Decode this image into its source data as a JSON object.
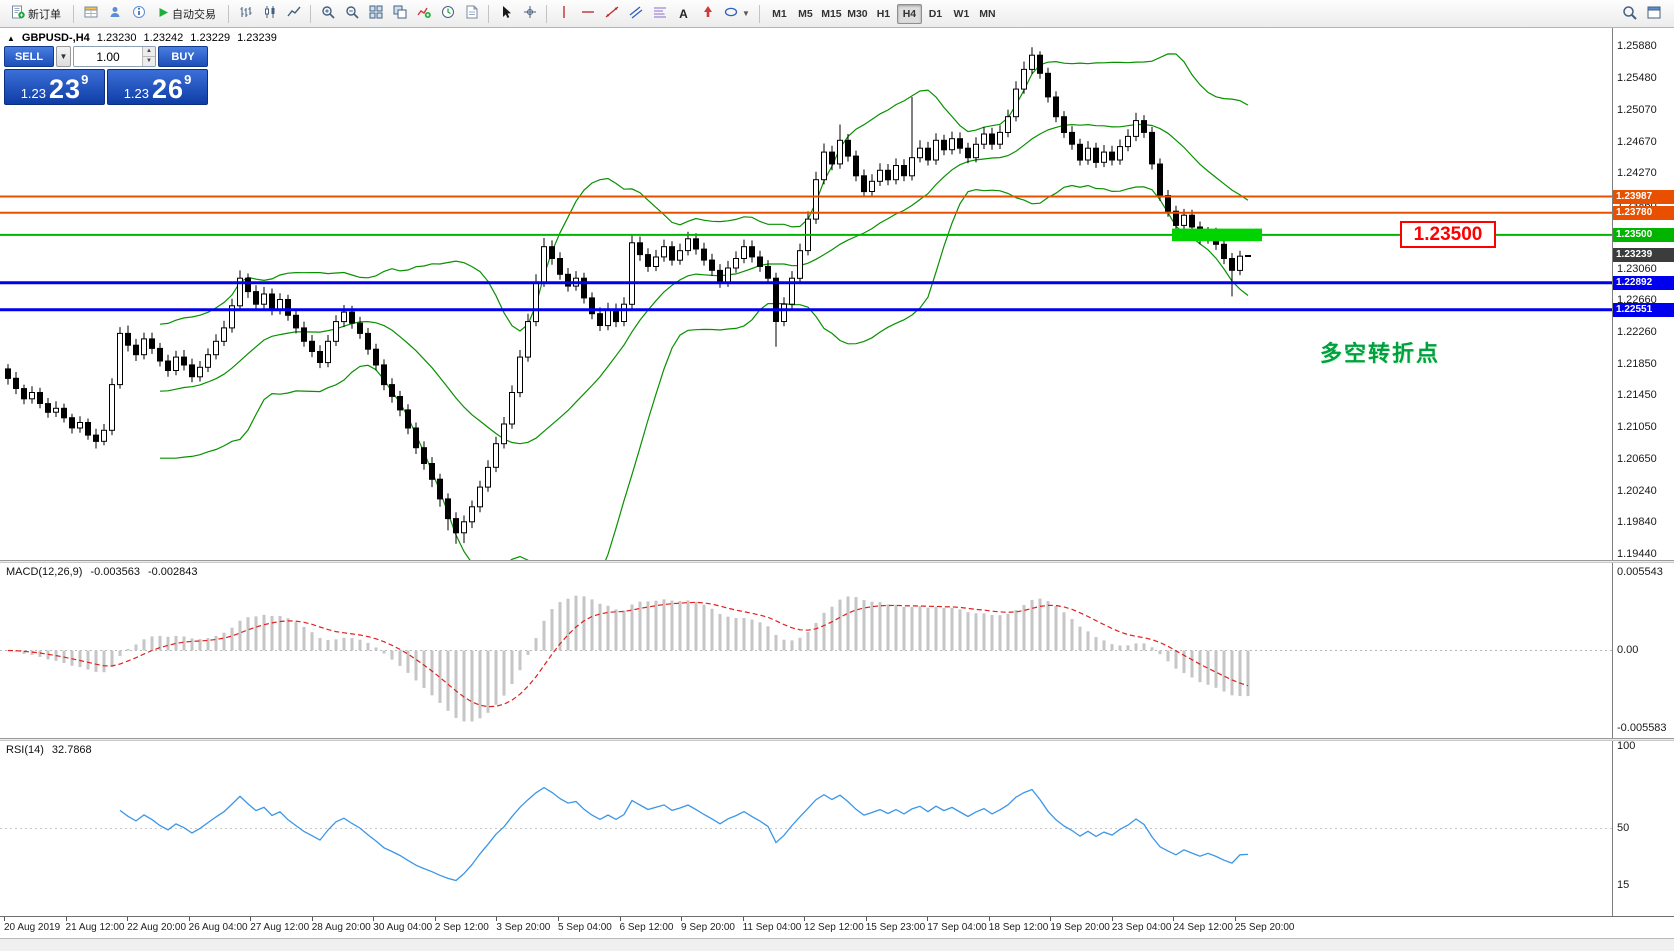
{
  "toolbar": {
    "new_order": "新订单",
    "autotrading": "自动交易",
    "text_tool": "A",
    "timeframes": [
      "M1",
      "M5",
      "M15",
      "M30",
      "H1",
      "H4",
      "D1",
      "W1",
      "MN"
    ],
    "active_timeframe": "H4"
  },
  "chart": {
    "marker": "▲",
    "symbol": "GBPUSD-,H4",
    "open": "1.23230",
    "high": "1.23242",
    "low": "1.23229",
    "close": "1.23239",
    "annotation": "多空转折点",
    "callout": "1.23500",
    "axis_labels": [
      "1.25880",
      "1.25480",
      "1.25070",
      "1.24670",
      "1.24270",
      "1.23860",
      "1.23460",
      "1.23060",
      "1.22660",
      "1.22260",
      "1.21850",
      "1.21450",
      "1.21050",
      "1.20650",
      "1.20240",
      "1.19840",
      "1.19440"
    ],
    "levels": [
      {
        "value": 1.23987,
        "label": "1.23987",
        "color": "#e85000",
        "width": 2
      },
      {
        "value": 1.2378,
        "label": "1.23780",
        "color": "#e85000",
        "width": 2
      },
      {
        "value": 1.235,
        "label": "1.23500",
        "color": "#00b400",
        "width": 2
      },
      {
        "value": 1.22892,
        "label": "1.22892",
        "color": "#0000ee",
        "width": 3
      },
      {
        "value": 1.22551,
        "label": "1.22551",
        "color": "#0000ee",
        "width": 3
      }
    ],
    "current": {
      "value": 1.23239,
      "label": "1.23239",
      "color": "#3c3c3c"
    },
    "highlight": {
      "price": 1.235,
      "half_range": 0.0008,
      "start_bar": 146,
      "end_bar": 156,
      "color": "#00d400"
    }
  },
  "trade_panel": {
    "sell": "SELL",
    "buy": "BUY",
    "volume": "1.00",
    "sell_small": "1.23",
    "sell_big": "23",
    "sell_sup": "9",
    "buy_small": "1.23",
    "buy_big": "26",
    "buy_sup": "9"
  },
  "macd": {
    "title": "MACD(12,26,9)",
    "v1": "-0.003563",
    "v2": "-0.002843",
    "axis_top": "0.005543",
    "axis_zero": "0.00",
    "axis_bottom": "-0.005583",
    "fast": 12,
    "slow": 26,
    "signal": 9
  },
  "rsi": {
    "title": "RSI(14)",
    "value": "32.7868",
    "axis": [
      "100",
      "50",
      "15"
    ],
    "period": 14
  },
  "time_axis": [
    "20 Aug 2019",
    "21 Aug 12:00",
    "22 Aug 20:00",
    "26 Aug 04:00",
    "27 Aug 12:00",
    "28 Aug 20:00",
    "30 Aug 04:00",
    "2 Sep 12:00",
    "3 Sep 20:00",
    "5 Sep 04:00",
    "6 Sep 12:00",
    "9 Sep 20:00",
    "11 Sep 04:00",
    "12 Sep 12:00",
    "15 Sep 23:00",
    "17 Sep 04:00",
    "18 Sep 12:00",
    "19 Sep 20:00",
    "23 Sep 04:00",
    "24 Sep 12:00",
    "25 Sep 20:00"
  ],
  "chart_data": {
    "type": "candlestick",
    "symbol": "GBPUSD",
    "timeframe": "H4",
    "ylim": [
      1.19375,
      1.26125
    ],
    "colors": {
      "bull": "#ffffff",
      "bear": "#000000",
      "bollinger": "#089000",
      "macd_hist": "#c6c6c6",
      "macd_signal": "#e02020",
      "rsi": "#3b96e8"
    },
    "indicators": {
      "bollinger": {
        "period": 20,
        "deviation": 2
      },
      "macd": [
        12,
        26,
        9
      ],
      "rsi": 14
    },
    "candles": [
      [
        1.218,
        1.2186,
        1.216,
        1.2168
      ],
      [
        1.2168,
        1.2176,
        1.2148,
        1.2155
      ],
      [
        1.2155,
        1.216,
        1.2135,
        1.2142
      ],
      [
        1.2142,
        1.2158,
        1.2136,
        1.215
      ],
      [
        1.215,
        1.2156,
        1.213,
        1.2136
      ],
      [
        1.2136,
        1.2143,
        1.2118,
        1.2125
      ],
      [
        1.2125,
        1.2139,
        1.2119,
        1.213
      ],
      [
        1.213,
        1.2136,
        1.2112,
        1.2118
      ],
      [
        1.2118,
        1.2123,
        1.2098,
        1.2105
      ],
      [
        1.2105,
        1.212,
        1.2099,
        1.2112
      ],
      [
        1.2112,
        1.2117,
        1.209,
        1.2096
      ],
      [
        1.2096,
        1.2104,
        1.2079,
        1.2088
      ],
      [
        1.2088,
        1.211,
        1.2083,
        1.2102
      ],
      [
        1.2102,
        1.2168,
        1.2096,
        1.216
      ],
      [
        1.216,
        1.2233,
        1.2155,
        1.2225
      ],
      [
        1.2225,
        1.2235,
        1.2202,
        1.221
      ],
      [
        1.221,
        1.2218,
        1.219,
        1.2198
      ],
      [
        1.2198,
        1.2226,
        1.2192,
        1.2218
      ],
      [
        1.2218,
        1.2226,
        1.2199,
        1.2206
      ],
      [
        1.2206,
        1.2213,
        1.2183,
        1.219
      ],
      [
        1.219,
        1.2198,
        1.217,
        1.2178
      ],
      [
        1.2178,
        1.2203,
        1.2172,
        1.2195
      ],
      [
        1.2195,
        1.2204,
        1.2178,
        1.2185
      ],
      [
        1.2185,
        1.2193,
        1.2163,
        1.217
      ],
      [
        1.217,
        1.219,
        1.2164,
        1.2182
      ],
      [
        1.2182,
        1.2206,
        1.2176,
        1.2198
      ],
      [
        1.2198,
        1.2224,
        1.2192,
        1.2215
      ],
      [
        1.2215,
        1.2241,
        1.2209,
        1.2232
      ],
      [
        1.2232,
        1.2269,
        1.2226,
        1.226
      ],
      [
        1.226,
        1.2305,
        1.2254,
        1.2295
      ],
      [
        1.2295,
        1.2301,
        1.227,
        1.2278
      ],
      [
        1.2278,
        1.2286,
        1.2255,
        1.2262
      ],
      [
        1.2262,
        1.2284,
        1.2256,
        1.2275
      ],
      [
        1.2275,
        1.2282,
        1.2248,
        1.2255
      ],
      [
        1.2255,
        1.2276,
        1.2249,
        1.2268
      ],
      [
        1.2268,
        1.2274,
        1.2241,
        1.2248
      ],
      [
        1.2248,
        1.2256,
        1.2225,
        1.2232
      ],
      [
        1.2232,
        1.224,
        1.2208,
        1.2215
      ],
      [
        1.2215,
        1.2223,
        1.2195,
        1.2202
      ],
      [
        1.2202,
        1.221,
        1.2181,
        1.2188
      ],
      [
        1.2188,
        1.2223,
        1.2182,
        1.2215
      ],
      [
        1.2215,
        1.2248,
        1.2209,
        1.224
      ],
      [
        1.224,
        1.2261,
        1.2233,
        1.2252
      ],
      [
        1.2252,
        1.226,
        1.2231,
        1.2238
      ],
      [
        1.2238,
        1.2246,
        1.2218,
        1.2225
      ],
      [
        1.2225,
        1.2232,
        1.2198,
        1.2205
      ],
      [
        1.2205,
        1.2212,
        1.2178,
        1.2185
      ],
      [
        1.2185,
        1.2192,
        1.2153,
        1.216
      ],
      [
        1.216,
        1.2168,
        1.2137,
        1.2145
      ],
      [
        1.2145,
        1.2152,
        1.212,
        1.2128
      ],
      [
        1.2128,
        1.2135,
        1.2097,
        1.2105
      ],
      [
        1.2105,
        1.2112,
        1.2072,
        1.208
      ],
      [
        1.208,
        1.2088,
        1.2052,
        1.206
      ],
      [
        1.206,
        1.2068,
        1.203,
        1.204
      ],
      [
        1.204,
        1.2047,
        1.2005,
        1.2015
      ],
      [
        1.2015,
        1.2022,
        1.1975,
        1.199
      ],
      [
        1.199,
        1.1998,
        1.1958,
        1.1972
      ],
      [
        1.1972,
        1.1994,
        1.1959,
        1.1986
      ],
      [
        1.1986,
        1.2013,
        1.1978,
        1.2005
      ],
      [
        1.2005,
        1.2038,
        1.1998,
        1.203
      ],
      [
        1.203,
        1.2064,
        1.2024,
        1.2055
      ],
      [
        1.2055,
        1.2094,
        1.2049,
        1.2085
      ],
      [
        1.2085,
        1.2119,
        1.2079,
        1.211
      ],
      [
        1.211,
        1.2159,
        1.2104,
        1.215
      ],
      [
        1.215,
        1.2204,
        1.2144,
        1.2195
      ],
      [
        1.2195,
        1.225,
        1.2189,
        1.224
      ],
      [
        1.224,
        1.23,
        1.2234,
        1.229
      ],
      [
        1.229,
        1.2346,
        1.2284,
        1.2335
      ],
      [
        1.2335,
        1.2343,
        1.2312,
        1.232
      ],
      [
        1.232,
        1.2328,
        1.2293,
        1.23
      ],
      [
        1.23,
        1.2308,
        1.2278,
        1.2285
      ],
      [
        1.2285,
        1.2304,
        1.2279,
        1.2295
      ],
      [
        1.2295,
        1.2302,
        1.2263,
        1.227
      ],
      [
        1.227,
        1.2277,
        1.2243,
        1.225
      ],
      [
        1.225,
        1.2258,
        1.2228,
        1.2235
      ],
      [
        1.2235,
        1.2264,
        1.2229,
        1.2255
      ],
      [
        1.2255,
        1.2263,
        1.2233,
        1.224
      ],
      [
        1.224,
        1.2271,
        1.2234,
        1.2262
      ],
      [
        1.2262,
        1.235,
        1.2256,
        1.234
      ],
      [
        1.234,
        1.2348,
        1.2317,
        1.2325
      ],
      [
        1.2325,
        1.2333,
        1.2303,
        1.231
      ],
      [
        1.231,
        1.2331,
        1.2304,
        1.2322
      ],
      [
        1.2322,
        1.2344,
        1.2316,
        1.2335
      ],
      [
        1.2335,
        1.2342,
        1.2311,
        1.2318
      ],
      [
        1.2318,
        1.2339,
        1.2312,
        1.233
      ],
      [
        1.233,
        1.2354,
        1.2324,
        1.2345
      ],
      [
        1.2345,
        1.2352,
        1.2325,
        1.2332
      ],
      [
        1.2332,
        1.234,
        1.2311,
        1.2318
      ],
      [
        1.2318,
        1.2326,
        1.2298,
        1.2305
      ],
      [
        1.2305,
        1.2313,
        1.2283,
        1.229
      ],
      [
        1.229,
        1.2317,
        1.2284,
        1.2308
      ],
      [
        1.2308,
        1.2329,
        1.2302,
        1.232
      ],
      [
        1.232,
        1.2344,
        1.2314,
        1.2335
      ],
      [
        1.2335,
        1.2343,
        1.2315,
        1.2322
      ],
      [
        1.2322,
        1.233,
        1.2303,
        1.231
      ],
      [
        1.231,
        1.2318,
        1.2288,
        1.2295
      ],
      [
        1.2295,
        1.2302,
        1.2208,
        1.224
      ],
      [
        1.224,
        1.2271,
        1.2234,
        1.2262
      ],
      [
        1.2262,
        1.2304,
        1.2256,
        1.2295
      ],
      [
        1.2295,
        1.2339,
        1.2289,
        1.233
      ],
      [
        1.233,
        1.238,
        1.2324,
        1.237
      ],
      [
        1.237,
        1.243,
        1.2364,
        1.242
      ],
      [
        1.242,
        1.2466,
        1.2414,
        1.2455
      ],
      [
        1.2455,
        1.2463,
        1.2432,
        1.244
      ],
      [
        1.244,
        1.249,
        1.2434,
        1.247
      ],
      [
        1.247,
        1.2478,
        1.2443,
        1.245
      ],
      [
        1.245,
        1.2457,
        1.2418,
        1.2425
      ],
      [
        1.2425,
        1.2433,
        1.2398,
        1.2405
      ],
      [
        1.2405,
        1.2427,
        1.2399,
        1.2418
      ],
      [
        1.2418,
        1.2441,
        1.2412,
        1.2432
      ],
      [
        1.2432,
        1.244,
        1.2413,
        1.242
      ],
      [
        1.242,
        1.2447,
        1.2414,
        1.2438
      ],
      [
        1.2438,
        1.2446,
        1.2418,
        1.2425
      ],
      [
        1.2425,
        1.2525,
        1.2419,
        1.2448
      ],
      [
        1.2448,
        1.247,
        1.2442,
        1.246
      ],
      [
        1.246,
        1.2468,
        1.2438,
        1.2445
      ],
      [
        1.2445,
        1.2479,
        1.2439,
        1.247
      ],
      [
        1.247,
        1.2477,
        1.2451,
        1.2458
      ],
      [
        1.2458,
        1.2481,
        1.2452,
        1.2472
      ],
      [
        1.2472,
        1.248,
        1.2453,
        1.246
      ],
      [
        1.246,
        1.2467,
        1.2441,
        1.2448
      ],
      [
        1.2448,
        1.2474,
        1.2442,
        1.2465
      ],
      [
        1.2465,
        1.2487,
        1.2459,
        1.2478
      ],
      [
        1.2478,
        1.2486,
        1.2458,
        1.2465
      ],
      [
        1.2465,
        1.2489,
        1.2459,
        1.248
      ],
      [
        1.248,
        1.2509,
        1.2474,
        1.25
      ],
      [
        1.25,
        1.2545,
        1.2494,
        1.2535
      ],
      [
        1.2535,
        1.257,
        1.2529,
        1.256
      ],
      [
        1.256,
        1.2588,
        1.2554,
        1.2578
      ],
      [
        1.2578,
        1.2583,
        1.2548,
        1.2555
      ],
      [
        1.2555,
        1.2562,
        1.2518,
        1.2525
      ],
      [
        1.2525,
        1.2532,
        1.2493,
        1.25
      ],
      [
        1.25,
        1.2507,
        1.2473,
        1.248
      ],
      [
        1.248,
        1.2488,
        1.2458,
        1.2465
      ],
      [
        1.2465,
        1.2472,
        1.2438,
        1.2445
      ],
      [
        1.2445,
        1.2469,
        1.2439,
        1.246
      ],
      [
        1.246,
        1.2467,
        1.2435,
        1.2442
      ],
      [
        1.2442,
        1.2464,
        1.2436,
        1.2455
      ],
      [
        1.2455,
        1.2463,
        1.2438,
        1.2445
      ],
      [
        1.2445,
        1.2471,
        1.2439,
        1.2462
      ],
      [
        1.2462,
        1.2484,
        1.2456,
        1.2475
      ],
      [
        1.2475,
        1.2505,
        1.2469,
        1.2495
      ],
      [
        1.2495,
        1.2502,
        1.2473,
        1.248
      ],
      [
        1.248,
        1.2487,
        1.2433,
        1.244
      ],
      [
        1.244,
        1.2447,
        1.2393,
        1.24
      ],
      [
        1.24,
        1.2407,
        1.2373,
        1.238
      ],
      [
        1.238,
        1.2387,
        1.2355,
        1.2362
      ],
      [
        1.2362,
        1.2383,
        1.2356,
        1.2375
      ],
      [
        1.2375,
        1.2382,
        1.2353,
        1.236
      ],
      [
        1.236,
        1.2367,
        1.2338,
        1.2345
      ],
      [
        1.2345,
        1.236,
        1.2339,
        1.2352
      ],
      [
        1.2352,
        1.2359,
        1.2331,
        1.2338
      ],
      [
        1.2338,
        1.2345,
        1.2313,
        1.232
      ],
      [
        1.232,
        1.2327,
        1.2272,
        1.2305
      ],
      [
        1.2305,
        1.233,
        1.2299,
        1.2323
      ],
      [
        1.2323,
        1.23242,
        1.23229,
        1.23239
      ]
    ]
  }
}
